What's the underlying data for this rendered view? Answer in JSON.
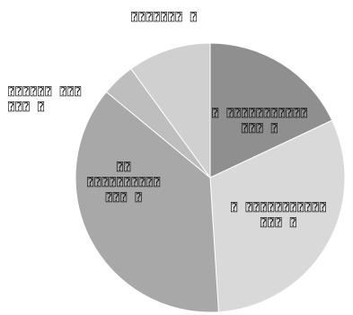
{
  "chart_data": {
    "type": "pie",
    "title": "",
    "slices": [
      {
        "label": "⍰ ⍰⍰⍰⍰⍰⍰⍰⍰⍰⍰⍰\n⍰⍰⍰ ⍰",
        "value": 18,
        "color": "#8f8f8f"
      },
      {
        "label": "⍰ ⍰⍰⍰⍰⍰⍰⍰⍰⍰⍰⍰\n⍰⍰⍰ ⍰",
        "value": 31,
        "color": "#d9d9d9"
      },
      {
        "label": "⍰⍰\n⍰⍰⍰⍰⍰⍰⍰⍰⍰⍰\n⍰⍰⍰ ⍰",
        "value": 37,
        "color": "#a8a8a8"
      },
      {
        "label": "⍰⍰⍰⍰⍰⍰ ⍰⍰⍰\n⍰⍰⍰ ⍰",
        "value": 4,
        "color": "#bebebe"
      },
      {
        "label": "⍰⍰⍰⍰⍰⍰⍰ ⍰",
        "value": 10,
        "color": "#d0d0d0"
      }
    ]
  }
}
